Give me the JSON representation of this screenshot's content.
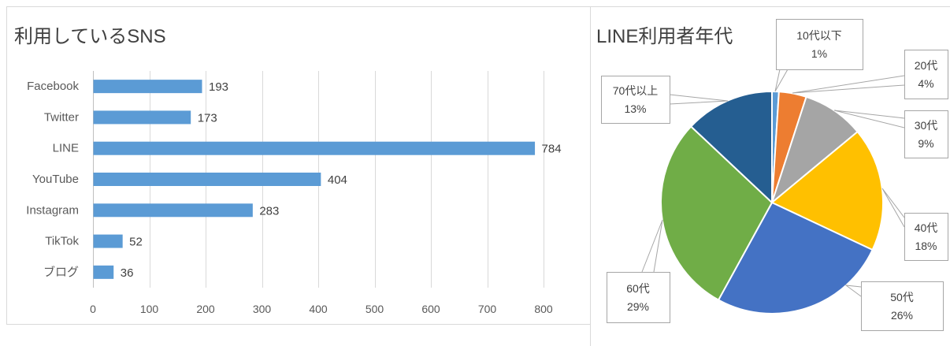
{
  "chart_data": [
    {
      "type": "bar",
      "orientation": "horizontal",
      "title": "利用しているSNS",
      "categories": [
        "Facebook",
        "Twitter",
        "LINE",
        "YouTube",
        "Instagram",
        "TikTok",
        "ブログ"
      ],
      "values": [
        193,
        173,
        784,
        404,
        283,
        52,
        36
      ],
      "xlim": [
        0,
        800
      ],
      "xticks": [
        0,
        100,
        200,
        300,
        400,
        500,
        600,
        700,
        800
      ],
      "grid": true,
      "data_labels": true,
      "color": "#5B9BD5"
    },
    {
      "type": "pie",
      "title": "LINE利用者年代",
      "slices": [
        {
          "label": "10代以下",
          "value": 1,
          "data_label": "1%",
          "color": "#5B9BD5"
        },
        {
          "label": "20代",
          "value": 4,
          "data_label": "4%",
          "color": "#ED7D31"
        },
        {
          "label": "30代",
          "value": 9,
          "data_label": "9%",
          "color": "#A5A5A5"
        },
        {
          "label": "40代",
          "value": 18,
          "data_label": "18%",
          "color": "#FFC000"
        },
        {
          "label": "50代",
          "value": 26,
          "data_label": "26%",
          "color": "#4472C4"
        },
        {
          "label": "60代",
          "value": 29,
          "data_label": "29%",
          "color": "#70AD47"
        },
        {
          "label": "70代以上",
          "value": 13,
          "data_label": "13%",
          "color": "#255E91"
        }
      ]
    }
  ]
}
